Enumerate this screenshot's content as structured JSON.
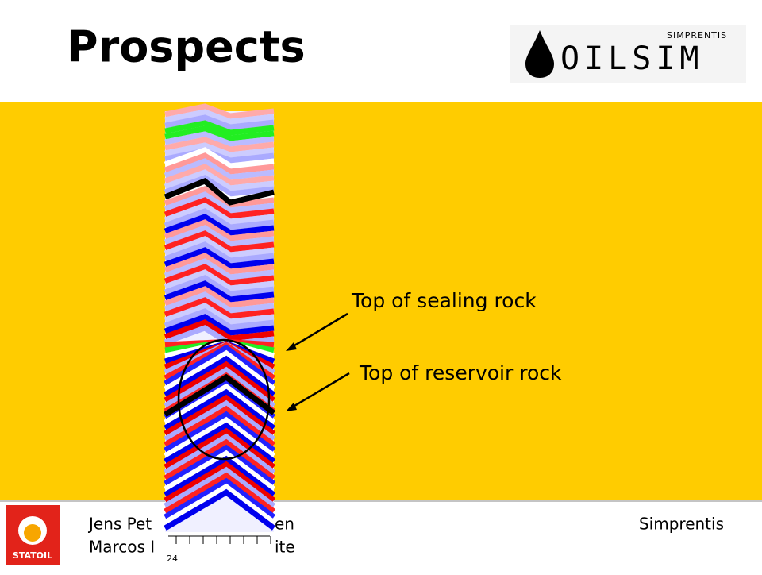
{
  "header": {
    "title": "Prospects",
    "logo_top": "SIMPRENTIS",
    "logo_main": "OILSIM"
  },
  "annotations": [
    "Top of sealing rock",
    "Top of reservoir rock"
  ],
  "footer": {
    "company_logo": "STATOIL",
    "authors": [
      [
        "Jens Pet",
        "en"
      ],
      [
        "Marcos I",
        "ite"
      ]
    ],
    "organization": "Simprentis",
    "page": "24"
  }
}
